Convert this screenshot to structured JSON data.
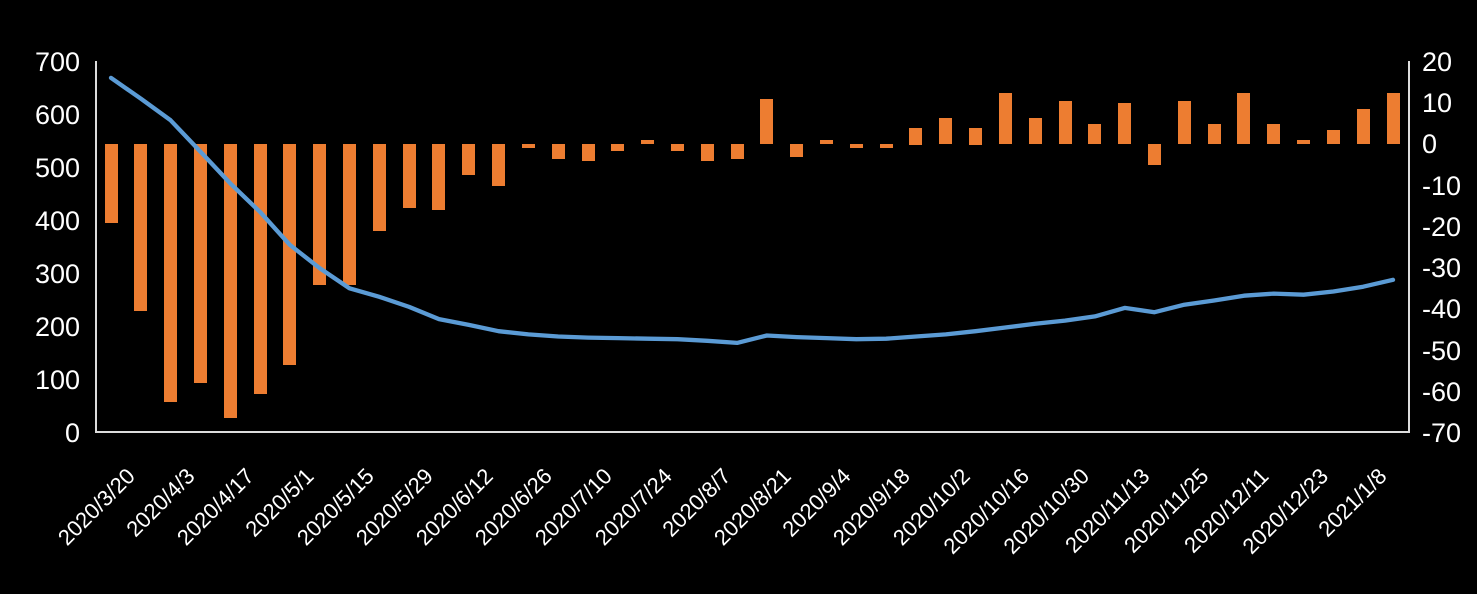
{
  "chart_data": {
    "type": "combo",
    "title": "",
    "background_color": "#000000",
    "text_color": "#FFFFFF",
    "axis_line_color": "#DCDCDC",
    "grid": false,
    "legend": "none",
    "n_points": 44,
    "x_tick_every": 2,
    "x_tick_labels": [
      "2020/3/20",
      "2020/4/3",
      "2020/4/17",
      "2020/5/1",
      "2020/5/15",
      "2020/5/29",
      "2020/6/12",
      "2020/6/26",
      "2020/7/10",
      "2020/7/24",
      "2020/8/7",
      "2020/8/21",
      "2020/9/4",
      "2020/9/18",
      "2020/10/2",
      "2020/10/16",
      "2020/10/30",
      "2020/11/13",
      "2020/11/25",
      "2020/12/11",
      "2020/12/23",
      "2021/1/8"
    ],
    "left_axis": {
      "min": 0,
      "max": 700,
      "step": 100,
      "ticks": [
        0,
        100,
        200,
        300,
        400,
        500,
        600,
        700
      ]
    },
    "right_axis": {
      "min": -70,
      "max": 20,
      "step": 10,
      "ticks": [
        20,
        10,
        0,
        -10,
        -20,
        -30,
        -40,
        -50,
        -60,
        -70
      ]
    },
    "series": [
      {
        "name": "weekly-change-bars",
        "type": "bar",
        "axis": "right",
        "color": "#ED7D31",
        "values": [
          -19,
          -40.5,
          -62.5,
          -58,
          -66.5,
          -60.5,
          -53.5,
          -34,
          -34,
          -21,
          -15.5,
          -16,
          -7.5,
          -10,
          -1,
          -3.5,
          -4,
          -1.5,
          1,
          -1.5,
          -4,
          -3.5,
          11,
          -3,
          1,
          -1,
          -1,
          4,
          6.5,
          4,
          12.5,
          6.5,
          10.5,
          5,
          10,
          -5,
          10.5,
          5,
          12.5,
          5,
          1,
          3.5,
          8.5,
          12.5
        ]
      },
      {
        "name": "level-line",
        "type": "line",
        "axis": "left",
        "color": "#5B9BD5",
        "values": [
          670,
          631,
          590,
          531,
          471,
          417,
          355,
          311,
          273,
          257,
          238,
          215,
          204,
          192,
          186,
          182,
          180,
          179,
          178,
          177,
          174,
          170,
          184,
          181,
          179,
          177,
          178,
          182,
          186,
          192,
          199,
          206,
          212,
          220,
          236,
          228,
          242,
          250,
          259,
          263,
          261,
          267,
          276,
          289
        ]
      }
    ]
  }
}
